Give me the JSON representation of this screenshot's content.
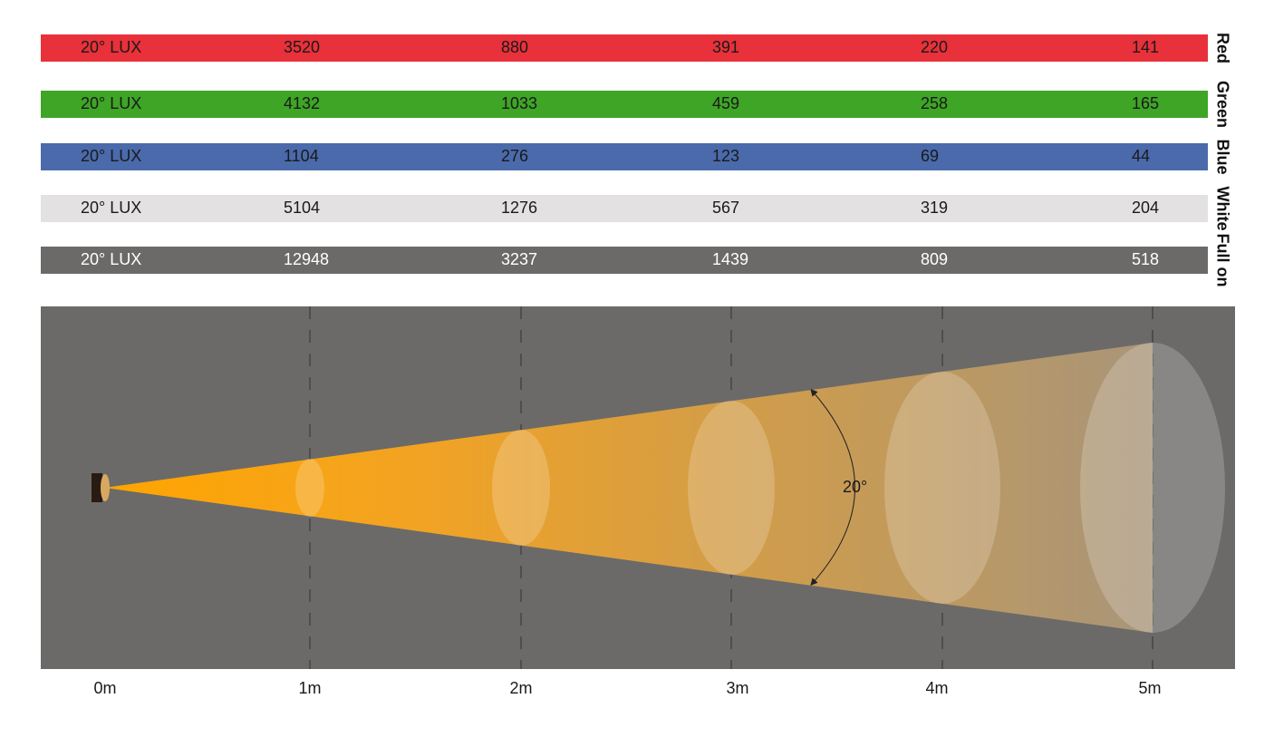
{
  "rows": [
    {
      "name": "Red",
      "label": "20° LUX",
      "color": "#e8313a",
      "text_color": "#1a1a1a",
      "values": [
        3520,
        880,
        391,
        220,
        141
      ]
    },
    {
      "name": "Green",
      "label": "20° LUX",
      "color": "#3ea526",
      "text_color": "#1a1a1a",
      "values": [
        4132,
        1033,
        459,
        258,
        165
      ]
    },
    {
      "name": "Blue",
      "label": "20° LUX",
      "color": "#4a6aab",
      "text_color": "#1a1a1a",
      "values": [
        1104,
        276,
        123,
        69,
        44
      ]
    },
    {
      "name": "White",
      "label": "20° LUX",
      "color": "#e3e1e1",
      "text_color": "#1a1a1a",
      "values": [
        5104,
        1276,
        567,
        319,
        204
      ]
    },
    {
      "name": "Full on",
      "label": "20° LUX",
      "color": "#6b6a68",
      "text_color": "#ffffff",
      "values": [
        12948,
        3237,
        1439,
        809,
        518
      ]
    }
  ],
  "distances": [
    "0m",
    "1m",
    "2m",
    "3m",
    "4m",
    "5m"
  ],
  "beam_angle_label": "20°"
}
